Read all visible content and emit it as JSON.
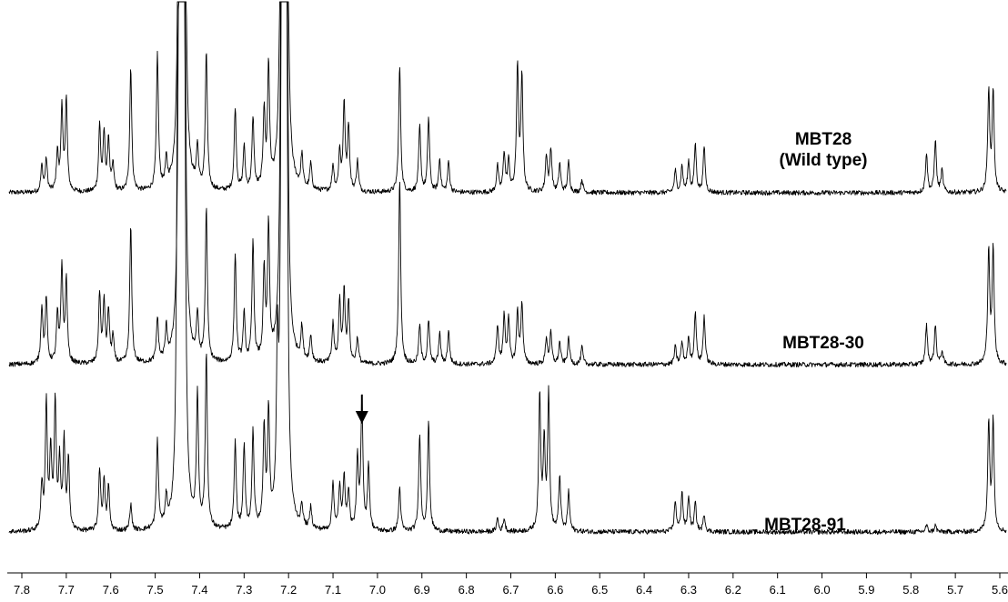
{
  "chart_data": {
    "type": "line",
    "x_axis": {
      "direction": "descending",
      "xlim": [
        7.8,
        5.6
      ],
      "tick_labels": [
        "7.8",
        "7.7",
        "7.6",
        "7.5",
        "7.4",
        "7.3",
        "7.2",
        "7.1",
        "7.0",
        "6.9",
        "6.8",
        "6.7",
        "6.6",
        "6.5",
        "6.4",
        "6.3",
        "6.2",
        "6.1",
        "6.0",
        "5.9",
        "5.8",
        "5.7",
        "5.6"
      ],
      "xlabel": ""
    },
    "y_axis": {
      "shown": false
    },
    "grid": false,
    "legend": "none",
    "series": [
      {
        "name": "MBT28 (Wild type)",
        "label_lines": [
          "MBT28",
          "(Wild type)"
        ],
        "peaks": [
          {
            "x": 7.755,
            "h": 0.12
          },
          {
            "x": 7.745,
            "h": 0.15
          },
          {
            "x": 7.72,
            "h": 0.18
          },
          {
            "x": 7.71,
            "h": 0.38
          },
          {
            "x": 7.7,
            "h": 0.42
          },
          {
            "x": 7.625,
            "h": 0.3
          },
          {
            "x": 7.615,
            "h": 0.26
          },
          {
            "x": 7.605,
            "h": 0.24
          },
          {
            "x": 7.595,
            "h": 0.12
          },
          {
            "x": 7.555,
            "h": 0.57
          },
          {
            "x": 7.495,
            "h": 0.62
          },
          {
            "x": 7.475,
            "h": 0.12
          },
          {
            "x": 7.445,
            "h": 2.8
          },
          {
            "x": 7.44,
            "h": 2.8
          },
          {
            "x": 7.435,
            "h": 2.8
          },
          {
            "x": 7.405,
            "h": 0.18
          },
          {
            "x": 7.385,
            "h": 0.63
          },
          {
            "x": 7.32,
            "h": 0.38
          },
          {
            "x": 7.3,
            "h": 0.2
          },
          {
            "x": 7.28,
            "h": 0.33
          },
          {
            "x": 7.255,
            "h": 0.35
          },
          {
            "x": 7.245,
            "h": 0.55
          },
          {
            "x": 7.215,
            "h": 2.8
          },
          {
            "x": 7.21,
            "h": 2.8
          },
          {
            "x": 7.205,
            "h": 2.8
          },
          {
            "x": 7.17,
            "h": 0.15
          },
          {
            "x": 7.15,
            "h": 0.12
          },
          {
            "x": 7.1,
            "h": 0.12
          },
          {
            "x": 7.085,
            "h": 0.18
          },
          {
            "x": 7.075,
            "h": 0.4
          },
          {
            "x": 7.065,
            "h": 0.3
          },
          {
            "x": 7.045,
            "h": 0.14
          },
          {
            "x": 6.95,
            "h": 0.58
          },
          {
            "x": 6.905,
            "h": 0.3
          },
          {
            "x": 6.885,
            "h": 0.34
          },
          {
            "x": 6.86,
            "h": 0.15
          },
          {
            "x": 6.84,
            "h": 0.14
          },
          {
            "x": 6.73,
            "h": 0.12
          },
          {
            "x": 6.715,
            "h": 0.18
          },
          {
            "x": 6.705,
            "h": 0.14
          },
          {
            "x": 6.685,
            "h": 0.58
          },
          {
            "x": 6.675,
            "h": 0.52
          },
          {
            "x": 6.62,
            "h": 0.17
          },
          {
            "x": 6.61,
            "h": 0.2
          },
          {
            "x": 6.59,
            "h": 0.13
          },
          {
            "x": 6.57,
            "h": 0.14
          },
          {
            "x": 6.54,
            "h": 0.06
          },
          {
            "x": 6.33,
            "h": 0.1
          },
          {
            "x": 6.315,
            "h": 0.12
          },
          {
            "x": 6.3,
            "h": 0.14
          },
          {
            "x": 6.285,
            "h": 0.22
          },
          {
            "x": 6.265,
            "h": 0.21
          },
          {
            "x": 5.765,
            "h": 0.18
          },
          {
            "x": 5.745,
            "h": 0.24
          },
          {
            "x": 5.73,
            "h": 0.1
          },
          {
            "x": 5.625,
            "h": 0.46
          },
          {
            "x": 5.615,
            "h": 0.46
          }
        ]
      },
      {
        "name": "MBT28-30",
        "label_lines": [
          "MBT28-30"
        ],
        "peaks": [
          {
            "x": 7.755,
            "h": 0.26
          },
          {
            "x": 7.745,
            "h": 0.3
          },
          {
            "x": 7.72,
            "h": 0.22
          },
          {
            "x": 7.71,
            "h": 0.44
          },
          {
            "x": 7.7,
            "h": 0.38
          },
          {
            "x": 7.625,
            "h": 0.32
          },
          {
            "x": 7.615,
            "h": 0.28
          },
          {
            "x": 7.605,
            "h": 0.24
          },
          {
            "x": 7.595,
            "h": 0.12
          },
          {
            "x": 7.555,
            "h": 0.63
          },
          {
            "x": 7.495,
            "h": 0.2
          },
          {
            "x": 7.475,
            "h": 0.14
          },
          {
            "x": 7.445,
            "h": 2.8
          },
          {
            "x": 7.44,
            "h": 2.8
          },
          {
            "x": 7.435,
            "h": 2.8
          },
          {
            "x": 7.405,
            "h": 0.2
          },
          {
            "x": 7.385,
            "h": 0.7
          },
          {
            "x": 7.32,
            "h": 0.5
          },
          {
            "x": 7.3,
            "h": 0.22
          },
          {
            "x": 7.28,
            "h": 0.55
          },
          {
            "x": 7.255,
            "h": 0.4
          },
          {
            "x": 7.245,
            "h": 0.6
          },
          {
            "x": 7.215,
            "h": 2.8
          },
          {
            "x": 7.21,
            "h": 2.8
          },
          {
            "x": 7.205,
            "h": 2.8
          },
          {
            "x": 7.17,
            "h": 0.15
          },
          {
            "x": 7.15,
            "h": 0.12
          },
          {
            "x": 7.1,
            "h": 0.18
          },
          {
            "x": 7.085,
            "h": 0.28
          },
          {
            "x": 7.075,
            "h": 0.32
          },
          {
            "x": 7.065,
            "h": 0.28
          },
          {
            "x": 7.045,
            "h": 0.12
          },
          {
            "x": 6.95,
            "h": 0.85
          },
          {
            "x": 6.905,
            "h": 0.18
          },
          {
            "x": 6.885,
            "h": 0.2
          },
          {
            "x": 6.86,
            "h": 0.14
          },
          {
            "x": 6.84,
            "h": 0.15
          },
          {
            "x": 6.73,
            "h": 0.18
          },
          {
            "x": 6.715,
            "h": 0.22
          },
          {
            "x": 6.705,
            "h": 0.2
          },
          {
            "x": 6.685,
            "h": 0.24
          },
          {
            "x": 6.675,
            "h": 0.28
          },
          {
            "x": 6.62,
            "h": 0.12
          },
          {
            "x": 6.61,
            "h": 0.14
          },
          {
            "x": 6.59,
            "h": 0.1
          },
          {
            "x": 6.57,
            "h": 0.12
          },
          {
            "x": 6.54,
            "h": 0.08
          },
          {
            "x": 6.33,
            "h": 0.08
          },
          {
            "x": 6.315,
            "h": 0.1
          },
          {
            "x": 6.3,
            "h": 0.12
          },
          {
            "x": 6.285,
            "h": 0.24
          },
          {
            "x": 6.265,
            "h": 0.22
          },
          {
            "x": 5.765,
            "h": 0.18
          },
          {
            "x": 5.745,
            "h": 0.18
          },
          {
            "x": 5.73,
            "h": 0.06
          },
          {
            "x": 5.625,
            "h": 0.52
          },
          {
            "x": 5.615,
            "h": 0.52
          }
        ]
      },
      {
        "name": "MBT28-91",
        "label_lines": [
          "MBT28-91"
        ],
        "annotations": [
          {
            "type": "arrow-down",
            "x": 7.035
          }
        ],
        "peaks": [
          {
            "x": 7.755,
            "h": 0.2
          },
          {
            "x": 7.745,
            "h": 0.58
          },
          {
            "x": 7.735,
            "h": 0.35
          },
          {
            "x": 7.725,
            "h": 0.58
          },
          {
            "x": 7.715,
            "h": 0.3
          },
          {
            "x": 7.705,
            "h": 0.4
          },
          {
            "x": 7.695,
            "h": 0.32
          },
          {
            "x": 7.625,
            "h": 0.28
          },
          {
            "x": 7.615,
            "h": 0.22
          },
          {
            "x": 7.605,
            "h": 0.2
          },
          {
            "x": 7.555,
            "h": 0.12
          },
          {
            "x": 7.495,
            "h": 0.4
          },
          {
            "x": 7.475,
            "h": 0.12
          },
          {
            "x": 7.45,
            "h": 1.2
          },
          {
            "x": 7.445,
            "h": 2.8
          },
          {
            "x": 7.44,
            "h": 2.8
          },
          {
            "x": 7.435,
            "h": 2.8
          },
          {
            "x": 7.405,
            "h": 0.6
          },
          {
            "x": 7.385,
            "h": 0.8
          },
          {
            "x": 7.32,
            "h": 0.4
          },
          {
            "x": 7.3,
            "h": 0.38
          },
          {
            "x": 7.28,
            "h": 0.45
          },
          {
            "x": 7.255,
            "h": 0.45
          },
          {
            "x": 7.245,
            "h": 0.52
          },
          {
            "x": 7.225,
            "h": 0.7
          },
          {
            "x": 7.215,
            "h": 2.8
          },
          {
            "x": 7.21,
            "h": 2.8
          },
          {
            "x": 7.205,
            "h": 2.8
          },
          {
            "x": 7.17,
            "h": 0.1
          },
          {
            "x": 7.15,
            "h": 0.1
          },
          {
            "x": 7.1,
            "h": 0.22
          },
          {
            "x": 7.085,
            "h": 0.2
          },
          {
            "x": 7.075,
            "h": 0.25
          },
          {
            "x": 7.065,
            "h": 0.18
          },
          {
            "x": 7.045,
            "h": 0.32
          },
          {
            "x": 7.035,
            "h": 0.6
          },
          {
            "x": 7.02,
            "h": 0.3
          },
          {
            "x": 6.95,
            "h": 0.2
          },
          {
            "x": 6.905,
            "h": 0.45
          },
          {
            "x": 6.885,
            "h": 0.5
          },
          {
            "x": 6.73,
            "h": 0.06
          },
          {
            "x": 6.715,
            "h": 0.06
          },
          {
            "x": 6.635,
            "h": 0.62
          },
          {
            "x": 6.625,
            "h": 0.4
          },
          {
            "x": 6.615,
            "h": 0.62
          },
          {
            "x": 6.59,
            "h": 0.25
          },
          {
            "x": 6.57,
            "h": 0.18
          },
          {
            "x": 6.33,
            "h": 0.14
          },
          {
            "x": 6.315,
            "h": 0.18
          },
          {
            "x": 6.3,
            "h": 0.16
          },
          {
            "x": 6.285,
            "h": 0.13
          },
          {
            "x": 6.265,
            "h": 0.08
          },
          {
            "x": 5.765,
            "h": 0.03
          },
          {
            "x": 5.745,
            "h": 0.03
          },
          {
            "x": 5.625,
            "h": 0.5
          },
          {
            "x": 5.615,
            "h": 0.5
          }
        ]
      }
    ]
  }
}
